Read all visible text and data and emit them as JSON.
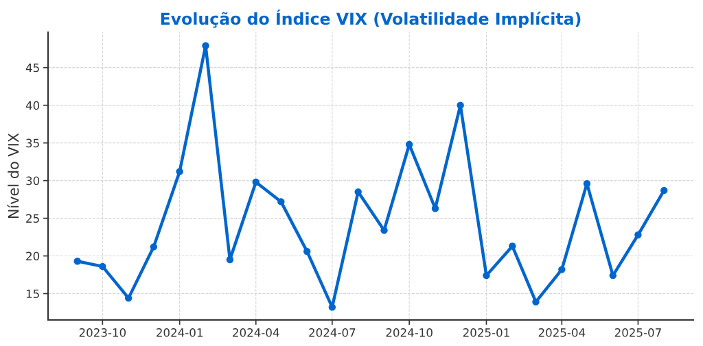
{
  "chart_data": {
    "type": "line",
    "title": "Evolução do Índice VIX (Volatilidade Implícita)",
    "ylabel": "Nível do VIX",
    "x": [
      "2023-09",
      "2023-10",
      "2023-11",
      "2023-12",
      "2024-01",
      "2024-02",
      "2024-03",
      "2024-04",
      "2024-05",
      "2024-06",
      "2024-07",
      "2024-08",
      "2024-09",
      "2024-10",
      "2024-11",
      "2024-12",
      "2025-01",
      "2025-02",
      "2025-03",
      "2025-04",
      "2025-05",
      "2025-06",
      "2025-07",
      "2025-08"
    ],
    "series": [
      {
        "color": "#0066cc",
        "values": [
          19.3,
          18.6,
          14.4,
          21.2,
          31.2,
          47.9,
          19.5,
          29.8,
          27.2,
          20.6,
          13.2,
          28.5,
          23.4,
          34.8,
          26.3,
          40.0,
          17.4,
          21.3,
          13.9,
          18.2,
          29.6,
          17.4,
          22.8,
          28.7
        ]
      }
    ],
    "xlim": [
      "2023-07-28",
      "2025-09-05"
    ],
    "xticks": [
      "2023-10",
      "2024-01",
      "2024-04",
      "2024-07",
      "2024-10",
      "2025-01",
      "2025-04",
      "2025-07"
    ],
    "ylim": [
      11.5,
      49.7
    ],
    "yticks": [
      15,
      20,
      25,
      30,
      35,
      40,
      45
    ],
    "grid": true,
    "marker": "circle",
    "line_style": "solid"
  }
}
